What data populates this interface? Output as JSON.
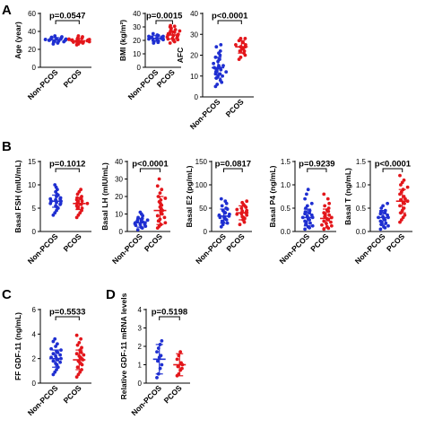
{
  "figure": {
    "panel_letters": [
      "A",
      "B",
      "C",
      "D"
    ],
    "colors": {
      "non_pcos": "#1f2fd1",
      "pcos": "#e3161b",
      "axis": "#000000"
    }
  },
  "chart_data": [
    {
      "type": "scatter",
      "panel": "A",
      "ylabel": "Age (year)",
      "ylim": [
        0,
        60
      ],
      "yticks": [
        "0",
        "20",
        "40",
        "60"
      ],
      "categories": [
        "Non-PCOS",
        "PCOS"
      ],
      "pvalue": "p=0.0547",
      "series": [
        {
          "name": "Non-PCOS",
          "center": 30.5,
          "sd": 2.5,
          "values": [
            26,
            27,
            28,
            28.5,
            29,
            29,
            29.5,
            30,
            30,
            30,
            30.5,
            30.5,
            31,
            31,
            31,
            31.5,
            32,
            32,
            32.5,
            33,
            33.5,
            34,
            35
          ]
        },
        {
          "name": "PCOS",
          "center": 29.5,
          "sd": 2.5,
          "values": [
            25,
            26,
            27,
            27.5,
            28,
            28,
            28.5,
            29,
            29,
            29.5,
            29.5,
            30,
            30,
            30.5,
            30.5,
            31,
            31,
            31.5,
            32,
            32.5,
            33,
            34,
            35
          ]
        }
      ]
    },
    {
      "type": "scatter",
      "panel": "A",
      "ylabel": "BMI (kg/m²)",
      "ylim": [
        0,
        40
      ],
      "yticks": [
        "0",
        "10",
        "20",
        "30",
        "40"
      ],
      "categories": [
        "Non-PCOS",
        "PCOS"
      ],
      "pvalue": "p=0.0015",
      "series": [
        {
          "name": "Non-PCOS",
          "center": 21.5,
          "sd": 2,
          "values": [
            18,
            18.5,
            19,
            19.5,
            20,
            20,
            20.5,
            21,
            21,
            21.5,
            21.5,
            22,
            22,
            22.5,
            22.5,
            23,
            23,
            23.5,
            24,
            25
          ]
        },
        {
          "name": "PCOS",
          "center": 24,
          "sd": 3,
          "values": [
            18,
            19,
            20,
            20.5,
            21,
            21.5,
            22,
            22.5,
            23,
            23.5,
            24,
            24,
            24.5,
            25,
            25.5,
            26,
            26.5,
            27,
            27.5,
            28,
            29,
            30,
            30.5,
            31
          ]
        }
      ]
    },
    {
      "type": "scatter",
      "panel": "A",
      "ylabel": "AFC",
      "ylim": [
        0,
        40
      ],
      "yticks": [
        "0",
        "10",
        "20",
        "30",
        "40"
      ],
      "categories": [
        "Non-PCOS",
        "PCOS"
      ],
      "pvalue": "p<0.0001",
      "series": [
        {
          "name": "Non-PCOS",
          "center": 14,
          "sd": 5,
          "values": [
            5,
            6,
            7,
            8,
            9,
            10,
            10,
            11,
            11,
            12,
            12,
            13,
            13,
            14,
            14,
            14,
            15,
            15,
            16,
            17,
            18,
            19,
            20,
            21,
            22,
            24,
            25
          ]
        },
        {
          "name": "PCOS",
          "center": 24,
          "sd": 3,
          "values": [
            18,
            19,
            20,
            21,
            22,
            22,
            23,
            23,
            24,
            24,
            24,
            25,
            25,
            26,
            27,
            28,
            28
          ]
        }
      ]
    },
    {
      "type": "scatter",
      "panel": "B",
      "ylabel": "Basal FSH (mIU/mL)",
      "ylim": [
        0,
        15
      ],
      "yticks": [
        "0",
        "5",
        "10",
        "15"
      ],
      "categories": [
        "Non-PCOS",
        "PCOS"
      ],
      "pvalue": "p=0.1012",
      "series": [
        {
          "name": "Non-PCOS",
          "center": 6.5,
          "sd": 1.3,
          "values": [
            3.5,
            4,
            4.5,
            5,
            5.2,
            5.5,
            5.8,
            6,
            6,
            6.2,
            6.5,
            6.5,
            6.8,
            7,
            7,
            7.2,
            7.5,
            7.8,
            8,
            8.5,
            9,
            9.5,
            10
          ]
        },
        {
          "name": "PCOS",
          "center": 6,
          "sd": 1.3,
          "values": [
            3,
            3.5,
            4,
            4.5,
            5,
            5,
            5.3,
            5.5,
            5.8,
            6,
            6,
            6.2,
            6.5,
            6.5,
            6.8,
            7,
            7.2,
            7.5,
            8,
            8.5,
            9
          ]
        }
      ]
    },
    {
      "type": "scatter",
      "panel": "B",
      "ylabel": "Basal LH (mIU/mL)",
      "ylim": [
        0,
        40
      ],
      "yticks": [
        "0",
        "10",
        "20",
        "30",
        "40"
      ],
      "categories": [
        "Non-PCOS",
        "PCOS"
      ],
      "pvalue": "p<0.0001",
      "series": [
        {
          "name": "Non-PCOS",
          "center": 5,
          "sd": 2.5,
          "values": [
            1,
            2,
            2.5,
            3,
            3.5,
            4,
            4,
            4.5,
            5,
            5,
            5.5,
            6,
            6,
            6.5,
            7,
            7.5,
            8,
            9,
            10,
            11
          ]
        },
        {
          "name": "PCOS",
          "center": 12,
          "sd": 8,
          "values": [
            2,
            3,
            4,
            5,
            6,
            7,
            8,
            9,
            10,
            11,
            12,
            13,
            14,
            15,
            16,
            17,
            18,
            19,
            20,
            22,
            24,
            26,
            30
          ]
        }
      ]
    },
    {
      "type": "scatter",
      "panel": "B",
      "ylabel": "Basal E2 (pg/mL)",
      "ylim": [
        0,
        150
      ],
      "yticks": [
        "0",
        "50",
        "100",
        "150"
      ],
      "categories": [
        "Non-PCOS",
        "PCOS"
      ],
      "pvalue": "p=0.0817",
      "series": [
        {
          "name": "Non-PCOS",
          "center": 33,
          "sd": 15,
          "values": [
            10,
            15,
            18,
            20,
            22,
            25,
            27,
            30,
            30,
            32,
            33,
            35,
            37,
            40,
            42,
            45,
            48,
            50,
            55,
            60,
            65,
            70
          ]
        },
        {
          "name": "PCOS",
          "center": 40,
          "sd": 15,
          "values": [
            15,
            20,
            25,
            28,
            30,
            32,
            35,
            37,
            38,
            40,
            40,
            42,
            44,
            45,
            47,
            50,
            52,
            55,
            58,
            62,
            65
          ]
        }
      ]
    },
    {
      "type": "scatter",
      "panel": "B",
      "ylabel": "Basal P4 (ng/mL)",
      "ylim": [
        0,
        1.5
      ],
      "yticks": [
        "0.0",
        "0.5",
        "1.0",
        "1.5"
      ],
      "categories": [
        "Non-PCOS",
        "PCOS"
      ],
      "pvalue": "p=0.9239",
      "series": [
        {
          "name": "Non-PCOS",
          "center": 0.3,
          "sd": 0.18,
          "values": [
            0.05,
            0.08,
            0.1,
            0.12,
            0.15,
            0.18,
            0.2,
            0.22,
            0.25,
            0.28,
            0.3,
            0.3,
            0.33,
            0.35,
            0.38,
            0.4,
            0.42,
            0.45,
            0.5,
            0.55,
            0.6,
            0.7,
            0.8,
            0.9
          ]
        },
        {
          "name": "PCOS",
          "center": 0.28,
          "sd": 0.2,
          "values": [
            0.05,
            0.07,
            0.1,
            0.12,
            0.14,
            0.17,
            0.2,
            0.22,
            0.25,
            0.27,
            0.3,
            0.32,
            0.35,
            0.37,
            0.4,
            0.43,
            0.46,
            0.5,
            0.55,
            0.6,
            0.7,
            0.8
          ]
        }
      ]
    },
    {
      "type": "scatter",
      "panel": "B",
      "ylabel": "Basal T (ng/mL)",
      "ylim": [
        0,
        1.5
      ],
      "yticks": [
        "0.0",
        "0.5",
        "1.0",
        "1.5"
      ],
      "categories": [
        "Non-PCOS",
        "PCOS"
      ],
      "pvalue": "p<0.0001",
      "series": [
        {
          "name": "Non-PCOS",
          "center": 0.3,
          "sd": 0.15,
          "values": [
            0.05,
            0.08,
            0.1,
            0.12,
            0.15,
            0.18,
            0.2,
            0.22,
            0.25,
            0.28,
            0.3,
            0.3,
            0.32,
            0.35,
            0.38,
            0.4,
            0.42,
            0.45,
            0.5,
            0.55,
            0.6
          ]
        },
        {
          "name": "PCOS",
          "center": 0.65,
          "sd": 0.25,
          "values": [
            0.2,
            0.25,
            0.3,
            0.35,
            0.4,
            0.45,
            0.5,
            0.55,
            0.6,
            0.62,
            0.65,
            0.68,
            0.7,
            0.75,
            0.8,
            0.85,
            0.9,
            0.95,
            1.0,
            1.05,
            1.1,
            1.2
          ]
        }
      ]
    },
    {
      "type": "scatter",
      "panel": "C",
      "ylabel": "FF GDF-11 (ng/mL)",
      "ylim": [
        0,
        6
      ],
      "yticks": [
        "0",
        "2",
        "4",
        "6"
      ],
      "categories": [
        "Non-PCOS",
        "PCOS"
      ],
      "pvalue": "p=0.5533",
      "series": [
        {
          "name": "Non-PCOS",
          "center": 2.0,
          "sd": 0.7,
          "values": [
            0.7,
            0.9,
            1.1,
            1.3,
            1.5,
            1.6,
            1.7,
            1.8,
            1.9,
            2.0,
            2.0,
            2.1,
            2.2,
            2.3,
            2.4,
            2.5,
            2.6,
            2.7,
            2.8,
            3.0,
            3.2,
            3.4,
            3.6
          ]
        },
        {
          "name": "PCOS",
          "center": 1.9,
          "sd": 0.8,
          "values": [
            0.5,
            0.7,
            0.9,
            1.1,
            1.3,
            1.5,
            1.6,
            1.7,
            1.8,
            1.9,
            2.0,
            2.1,
            2.2,
            2.3,
            2.4,
            2.5,
            2.7,
            2.9,
            3.1,
            3.3,
            3.6,
            3.9
          ]
        }
      ]
    },
    {
      "type": "scatter",
      "panel": "D",
      "ylabel": "Relative GDF-11 mRNA levels",
      "ylim": [
        0,
        4
      ],
      "yticks": [
        "0",
        "1",
        "2",
        "3",
        "4"
      ],
      "categories": [
        "Non-PCOS",
        "PCOS"
      ],
      "pvalue": "p=0.5198",
      "series": [
        {
          "name": "Non-PCOS",
          "center": 1.3,
          "sd": 0.8,
          "values": [
            0.3,
            0.5,
            0.8,
            1.0,
            1.2,
            1.4,
            1.5,
            1.7,
            1.9,
            2.1,
            2.3
          ]
        },
        {
          "name": "PCOS",
          "center": 1.0,
          "sd": 0.6,
          "values": [
            0.4,
            0.5,
            0.7,
            0.8,
            0.9,
            1.0,
            1.1,
            1.3,
            1.5,
            1.7
          ]
        }
      ]
    }
  ]
}
